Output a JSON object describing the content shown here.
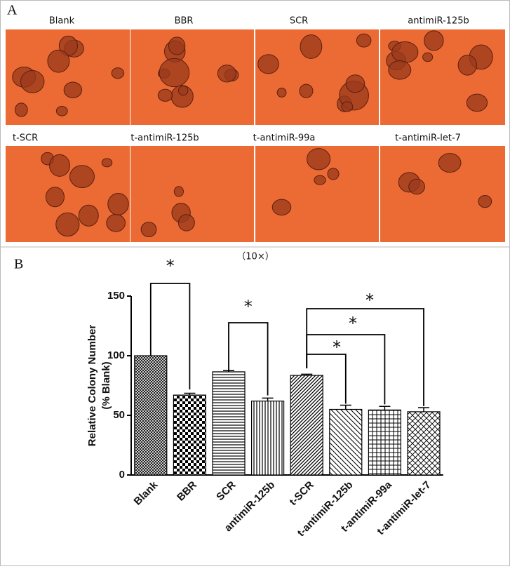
{
  "panel_a": {
    "label": "A",
    "images": [
      "Blank",
      "BBR",
      "SCR",
      "antimiR-125b",
      "t-SCR",
      "t-antimiR-125b",
      "t-antimiR-99a",
      "t-antimiR-let-7"
    ],
    "magnification": "（10×）"
  },
  "panel_b_label": "B",
  "chart_data": {
    "type": "bar",
    "ylabel": "Relative Colony Number",
    "ylabel_2": "(%    Blank)",
    "categories": [
      "Blank",
      "BBR",
      "SCR",
      "antimiR-125b",
      "t-SCR",
      "t-antimiR-125b",
      "t-antimiR-99a",
      "t-antimiR-let-7"
    ],
    "values": [
      100,
      67,
      86.5,
      62,
      83.5,
      55,
      54.5,
      53
    ],
    "errors": [
      0,
      1.5,
      1,
      2.5,
      1,
      3.5,
      3,
      3.5
    ],
    "color": "#000000",
    "ylim": [
      0,
      150
    ],
    "yticks": [
      0,
      50,
      100,
      150
    ],
    "significance": [
      "*",
      "*",
      "*",
      "*",
      "*"
    ]
  }
}
